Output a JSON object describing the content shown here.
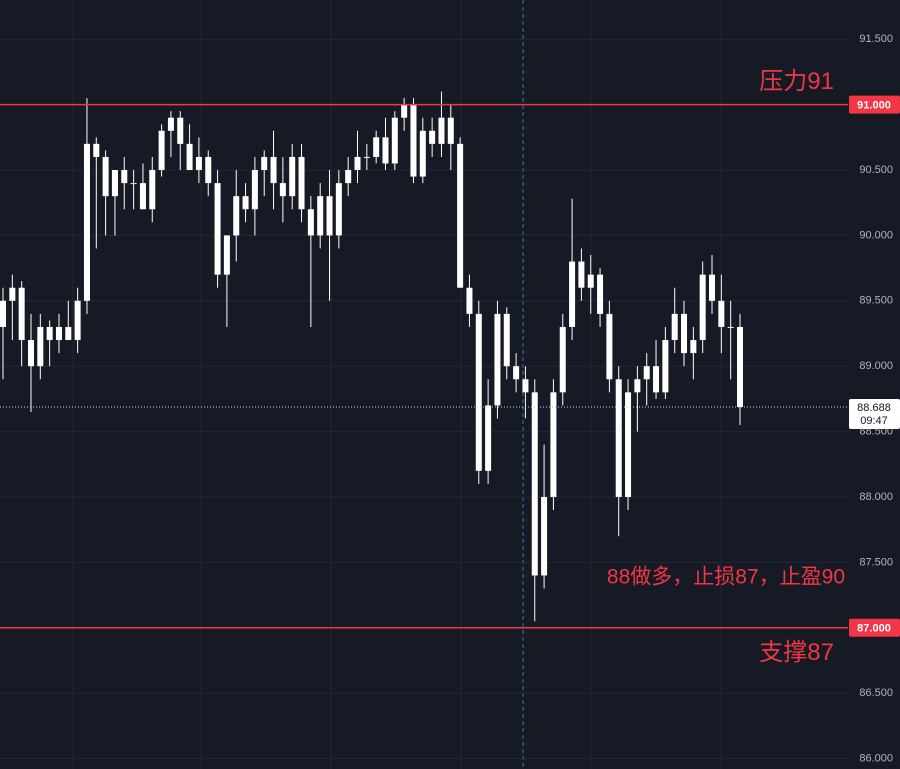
{
  "chart_data": {
    "type": "candlestick",
    "color": "#ffffff",
    "open": [
      89.3,
      89.5,
      89.6,
      89.2,
      89.0,
      89.3,
      89.2,
      89.3,
      89.2,
      89.5,
      90.7,
      90.6,
      90.3,
      90.5,
      90.4,
      90.4,
      90.2,
      90.5,
      90.8,
      90.9,
      90.7,
      90.5,
      90.6,
      90.4,
      89.7,
      90.0,
      90.3,
      90.2,
      90.5,
      90.6,
      90.4,
      90.3,
      90.6,
      90.2,
      90.0,
      90.3,
      90.0,
      90.4,
      90.5,
      90.6,
      90.6,
      90.75,
      90.55,
      90.9,
      91.0,
      90.45,
      90.8,
      90.7,
      90.9,
      90.7,
      89.6,
      89.4,
      88.2,
      88.7,
      89.4,
      89.0,
      88.9,
      88.8,
      87.4,
      88.0,
      88.8,
      89.3,
      89.8,
      89.6,
      89.7,
      89.4,
      88.9,
      88.0,
      88.8,
      88.9,
      89.0,
      88.8,
      89.2,
      89.4,
      89.1,
      89.2,
      89.7,
      89.5,
      89.3,
      89.3
    ],
    "high": [
      89.6,
      89.7,
      89.65,
      89.4,
      89.4,
      89.35,
      89.4,
      89.5,
      89.6,
      91.05,
      90.75,
      90.65,
      90.5,
      90.6,
      90.5,
      90.55,
      90.6,
      90.85,
      90.95,
      90.95,
      90.85,
      90.75,
      90.65,
      90.5,
      90.0,
      90.5,
      90.4,
      90.6,
      90.65,
      90.8,
      90.6,
      90.7,
      90.7,
      90.3,
      90.4,
      90.5,
      90.5,
      90.6,
      90.8,
      90.7,
      90.8,
      90.9,
      90.95,
      91.05,
      91.05,
      90.9,
      90.9,
      91.1,
      91.0,
      90.75,
      89.7,
      89.5,
      88.9,
      89.5,
      89.45,
      89.1,
      89.0,
      88.9,
      88.4,
      88.9,
      89.4,
      90.28,
      89.9,
      89.85,
      89.75,
      89.5,
      89.0,
      88.9,
      89.0,
      89.1,
      89.2,
      89.3,
      89.6,
      89.5,
      89.3,
      89.8,
      89.85,
      89.7,
      89.5,
      89.4
    ],
    "low": [
      88.9,
      89.2,
      89.0,
      88.65,
      88.9,
      89.0,
      89.1,
      89.2,
      89.1,
      89.4,
      89.9,
      90.0,
      90.0,
      90.2,
      90.2,
      90.2,
      90.1,
      90.45,
      90.6,
      90.5,
      90.5,
      90.4,
      90.3,
      89.6,
      89.3,
      89.8,
      90.1,
      90.0,
      90.3,
      90.2,
      90.1,
      90.2,
      90.1,
      89.3,
      89.9,
      89.5,
      89.9,
      90.3,
      90.4,
      90.5,
      90.55,
      90.5,
      90.5,
      90.8,
      90.4,
      90.4,
      90.6,
      90.6,
      90.5,
      89.6,
      89.3,
      88.1,
      88.1,
      88.6,
      88.9,
      88.8,
      88.6,
      87.05,
      87.3,
      87.9,
      88.7,
      89.2,
      89.5,
      89.4,
      89.3,
      88.8,
      87.7,
      87.9,
      88.5,
      88.7,
      88.75,
      88.75,
      89.1,
      89.0,
      88.9,
      89.1,
      89.4,
      89.1,
      88.9,
      88.55
    ],
    "close": [
      89.5,
      89.6,
      89.2,
      89.0,
      89.3,
      89.2,
      89.3,
      89.2,
      89.5,
      90.7,
      90.6,
      90.3,
      90.5,
      90.4,
      90.4,
      90.2,
      90.5,
      90.8,
      90.9,
      90.7,
      90.5,
      90.6,
      90.4,
      89.7,
      90.0,
      90.3,
      90.2,
      90.5,
      90.6,
      90.4,
      90.3,
      90.6,
      90.2,
      90.0,
      90.3,
      90.0,
      90.4,
      90.5,
      90.6,
      90.6,
      90.75,
      90.55,
      90.9,
      91.0,
      90.45,
      90.8,
      90.7,
      90.9,
      90.7,
      89.6,
      89.4,
      88.2,
      88.7,
      89.4,
      89.0,
      88.9,
      88.8,
      87.4,
      88.0,
      88.8,
      89.3,
      89.8,
      89.6,
      89.7,
      89.4,
      88.9,
      88.0,
      88.8,
      88.9,
      89.0,
      88.8,
      89.2,
      89.4,
      89.1,
      89.2,
      89.7,
      89.5,
      89.3,
      89.3,
      88.688
    ],
    "ylim": [
      85.92,
      91.8
    ],
    "yticks": [
      {
        "value": 86.0,
        "label": "86.000"
      },
      {
        "value": 86.5,
        "label": "86.500"
      },
      {
        "value": 87.0,
        "label": "87.000"
      },
      {
        "value": 87.5,
        "label": "87.500"
      },
      {
        "value": 88.0,
        "label": "88.000"
      },
      {
        "value": 88.5,
        "label": "88.500"
      },
      {
        "value": 89.0,
        "label": "89.000"
      },
      {
        "value": 89.5,
        "label": "89.500"
      },
      {
        "value": 90.0,
        "label": "90.000"
      },
      {
        "value": 90.5,
        "label": "90.500"
      },
      {
        "value": 91.0,
        "label": "91.000"
      },
      {
        "value": 91.5,
        "label": "91.500"
      }
    ],
    "grid": true,
    "levels": [
      {
        "value": 91,
        "label": "91.000",
        "text": "压力91",
        "color": "#f23645"
      },
      {
        "value": 87,
        "label": "87.000",
        "text": "支撑87",
        "color": "#f23645"
      }
    ],
    "annotation": "88做多，止损87，止盈90",
    "last_price": 88.688,
    "countdown": "09:47"
  }
}
